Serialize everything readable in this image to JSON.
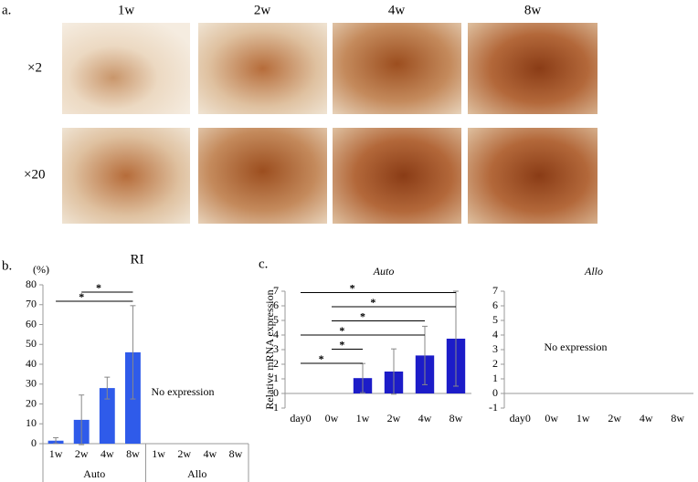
{
  "panel_a": {
    "label": "a.",
    "columns": [
      "1w",
      "2w",
      "4w",
      "8w"
    ],
    "rows": [
      "×2",
      "×20"
    ]
  },
  "chart_data": [
    {
      "type": "bar",
      "panel_label": "b.",
      "title": "RI",
      "y_unit": "(%)",
      "categories": [
        "1w",
        "2w",
        "4w",
        "8w",
        "1w",
        "2w",
        "4w",
        "8w"
      ],
      "groups": [
        "Auto",
        "Allo"
      ],
      "values": [
        1.5,
        12,
        28,
        46,
        null,
        null,
        null,
        null
      ],
      "errors": [
        1.5,
        12.5,
        5.5,
        23.5,
        null,
        null,
        null,
        null
      ],
      "color": "#2f5bea",
      "ylim": [
        0,
        80
      ],
      "yticks": [
        0,
        10,
        20,
        30,
        40,
        50,
        60,
        70,
        80
      ],
      "annotation": "No expression",
      "significance": [
        {
          "from": "1w",
          "to": "8w",
          "label": "*"
        },
        {
          "from": "2w",
          "to": "8w",
          "label": "*"
        }
      ]
    },
    {
      "type": "bar",
      "panel_label": "c.",
      "title": "Auto",
      "y_label": "Relative mRNA expression",
      "categories": [
        "day0",
        "0w",
        "1w",
        "2w",
        "4w",
        "8w"
      ],
      "values": [
        null,
        null,
        1.05,
        1.5,
        2.6,
        3.75
      ],
      "errors": [
        null,
        null,
        1.0,
        1.55,
        2.0,
        3.25
      ],
      "color": "#1c1cc8",
      "ylim": [
        -1,
        7
      ],
      "yticks": [
        -1,
        0,
        1,
        2,
        3,
        4,
        5,
        6,
        7
      ],
      "significance": [
        {
          "from": "day0",
          "to": "1w",
          "label": "*"
        },
        {
          "from": "0w",
          "to": "1w",
          "label": "*"
        },
        {
          "from": "day0",
          "to": "4w",
          "label": "*"
        },
        {
          "from": "0w",
          "to": "4w",
          "label": "*"
        },
        {
          "from": "0w",
          "to": "8w",
          "label": "*"
        },
        {
          "from": "day0",
          "to": "8w",
          "label": "*"
        }
      ]
    },
    {
      "type": "bar",
      "title": "Allo",
      "categories": [
        "day0",
        "0w",
        "1w",
        "2w",
        "4w",
        "8w"
      ],
      "values": [
        null,
        null,
        null,
        null,
        null,
        null
      ],
      "color": "#1c1cc8",
      "ylim": [
        -1,
        7
      ],
      "yticks": [
        -1,
        0,
        1,
        2,
        3,
        4,
        5,
        6,
        7
      ],
      "annotation": "No expression"
    }
  ]
}
